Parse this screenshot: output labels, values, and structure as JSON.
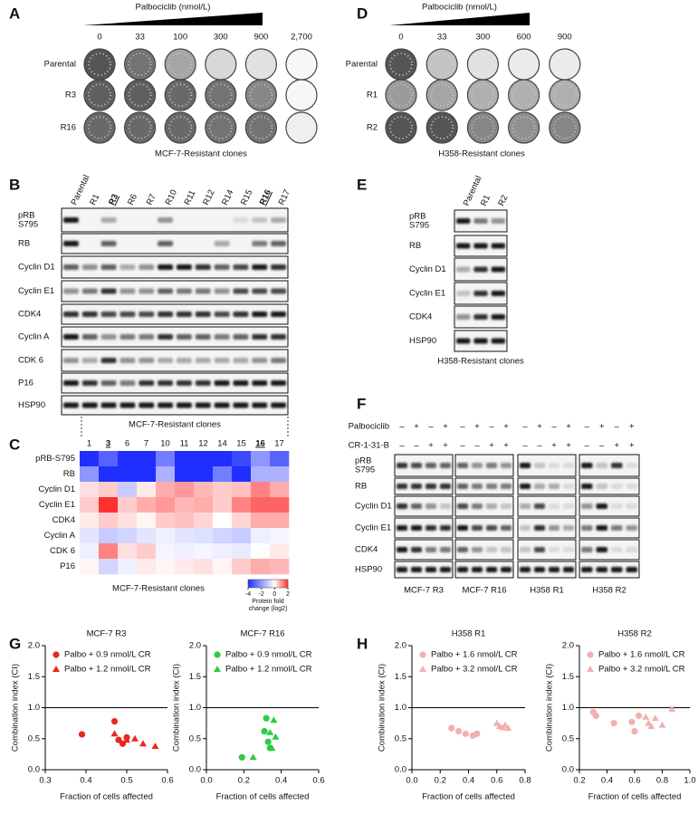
{
  "panel_labels": [
    "A",
    "B",
    "C",
    "D",
    "E",
    "F",
    "G",
    "H"
  ],
  "panel_a": {
    "title": "Palbociclib (nmol/L)",
    "doses": [
      "0",
      "33",
      "100",
      "300",
      "900",
      "2,700"
    ],
    "rows": [
      "Parental",
      "R3",
      "R16"
    ],
    "caption": "MCF-7-Resistant clones"
  },
  "panel_d": {
    "title": "Palbociclib (nmol/L)",
    "doses": [
      "0",
      "33",
      "300",
      "600",
      "900"
    ],
    "rows": [
      "Parental",
      "R1",
      "R2"
    ],
    "caption": "H358-Resistant clones"
  },
  "panel_b": {
    "lanes": [
      "Parental",
      "R1",
      "R3",
      "R6",
      "R7",
      "R10",
      "R11",
      "R12",
      "R14",
      "R15",
      "R16",
      "R17"
    ],
    "proteins": [
      [
        "pRB",
        "S795"
      ],
      [
        "RB"
      ],
      [
        "Cyclin D1"
      ],
      [
        "Cyclin E1"
      ],
      [
        "CDK4"
      ],
      [
        "Cyclin A"
      ],
      [
        "CDK 6"
      ],
      [
        "P16"
      ],
      [
        "HSP90"
      ]
    ],
    "caption": "MCF-7-Resistant clones"
  },
  "panel_e": {
    "lanes": [
      "Parental",
      "R1",
      "R2"
    ],
    "proteins": [
      [
        "pRB",
        "S795"
      ],
      [
        "RB"
      ],
      [
        "Cyclin D1"
      ],
      [
        "Cyclin E1"
      ],
      [
        "CDK4"
      ],
      [
        "HSP90"
      ]
    ],
    "caption": "H358-Resistant clones"
  },
  "panel_f": {
    "treatments": [
      {
        "label": "Palbociclib",
        "signs": [
          [
            "–",
            "+",
            "–",
            "+"
          ],
          [
            "–",
            "+",
            "–",
            "+"
          ],
          [
            "–",
            "+",
            "–",
            "+"
          ],
          [
            "–",
            "+",
            "–",
            "+"
          ]
        ]
      },
      {
        "label": "CR-1-31-B",
        "signs": [
          [
            "–",
            "–",
            "+",
            "+"
          ],
          [
            "–",
            "–",
            "+",
            "+"
          ],
          [
            "–",
            "–",
            "+",
            "+"
          ],
          [
            "–",
            "–",
            "+",
            "+"
          ]
        ]
      }
    ],
    "proteins": [
      [
        "pRB",
        "S795"
      ],
      [
        "RB"
      ],
      [
        "Cyclin D1"
      ],
      [
        "Cyclin E1"
      ],
      [
        "CDK4"
      ],
      [
        "HSP90"
      ]
    ],
    "groups": [
      "MCF-7 R3",
      "MCF-7 R16",
      "H358 R1",
      "H358 R2"
    ]
  },
  "chart_data": [
    {
      "type": "heatmap",
      "columns": [
        "1",
        "3",
        "6",
        "7",
        "10",
        "11",
        "12",
        "14",
        "15",
        "16",
        "17"
      ],
      "rows": [
        "pRB-S795",
        "RB",
        "Cyclin D1",
        "Cyclin E1",
        "CDK4",
        "Cyclin A",
        "CDK 6",
        "P16"
      ],
      "values": [
        [
          -4,
          -3,
          -4,
          -4,
          -2.5,
          -4,
          -4,
          -4,
          -3.5,
          -2,
          -3
        ],
        [
          -2,
          -4,
          -4,
          -4,
          -1.5,
          -4,
          -4,
          -2.5,
          -4,
          -1.5,
          -1.5
        ],
        [
          0.3,
          0.5,
          -1,
          0.2,
          0.8,
          1,
          0.7,
          0.5,
          0.6,
          1.2,
          0.8
        ],
        [
          0.5,
          2,
          0.5,
          0.8,
          1,
          0.7,
          0.8,
          0.5,
          1.2,
          1.5,
          1.5
        ],
        [
          0.2,
          0.5,
          0.3,
          0.1,
          0.5,
          0.6,
          0.4,
          0,
          0.4,
          0.8,
          0.8
        ],
        [
          -0.5,
          -1,
          -0.8,
          -0.5,
          -0.3,
          -0.5,
          -0.6,
          -0.8,
          -1,
          -0.3,
          -0.2
        ],
        [
          -0.3,
          1.2,
          0.3,
          0.5,
          -0.2,
          -0.3,
          -0.2,
          -0.3,
          -0.4,
          0,
          0.2
        ],
        [
          0.1,
          -0.8,
          -0.3,
          0.2,
          0.1,
          0.2,
          0.3,
          0.1,
          0.5,
          0.8,
          0.7
        ]
      ],
      "colorbar": {
        "lim": [
          -4,
          2
        ],
        "ticks": [
          -4,
          -2,
          0,
          2
        ],
        "label": [
          "Protein fold",
          "change (log2)"
        ],
        "low_color": "#1f2fff",
        "high_color": "#ff3030"
      },
      "caption": "MCF-7-Resistant clones"
    },
    {
      "type": "scatter",
      "title": "MCF-7 R3",
      "x_label": "Fraction of cells affected",
      "y_label": "Combination index (CI)",
      "xlim": [
        0.3,
        0.6
      ],
      "xticks": [
        0.3,
        0.4,
        0.5,
        0.6
      ],
      "ylim": [
        0,
        2
      ],
      "yticks": [
        {
          "value": 0,
          "label": "0.0"
        },
        0.5,
        {
          "value": 1,
          "label": "1.0"
        },
        1.5,
        {
          "value": 2,
          "label": "2.0"
        }
      ],
      "reference_line": 1,
      "series": [
        {
          "name": "Palbo + 0.9 nmol/L CR",
          "marker": "circle",
          "color": "#e8281e",
          "x": [
            0.39,
            0.47,
            0.48,
            0.49,
            0.5
          ],
          "values": [
            0.57,
            0.78,
            0.48,
            0.42,
            0.52
          ]
        },
        {
          "name": "Palbo + 1.2 nmol/L CR",
          "marker": "triangle",
          "color": "#e8281e",
          "x": [
            0.47,
            0.5,
            0.52,
            0.54,
            0.57
          ],
          "values": [
            0.58,
            0.48,
            0.5,
            0.42,
            0.38
          ]
        }
      ]
    },
    {
      "type": "scatter",
      "title": "MCF-7 R16",
      "x_label": "Fraction of cells affected",
      "y_label": "Combination index (CI)",
      "xlim": [
        0,
        0.6
      ],
      "xticks": [
        {
          "value": 0,
          "label": "0.0"
        },
        0.2,
        0.4,
        0.6
      ],
      "ylim": [
        0,
        2
      ],
      "yticks": [
        {
          "value": 0,
          "label": "0.0"
        },
        0.5,
        {
          "value": 1,
          "label": "1.0"
        },
        1.5,
        {
          "value": 2,
          "label": "2.0"
        }
      ],
      "reference_line": 1,
      "series": [
        {
          "name": "Palbo + 0.9 nmol/L CR",
          "marker": "circle",
          "color": "#2ecc40",
          "x": [
            0.19,
            0.31,
            0.32,
            0.33,
            0.34
          ],
          "values": [
            0.2,
            0.62,
            0.83,
            0.45,
            0.35
          ]
        },
        {
          "name": "Palbo + 1.2 nmol/L CR",
          "marker": "triangle",
          "color": "#2ecc40",
          "x": [
            0.25,
            0.34,
            0.35,
            0.36,
            0.37
          ],
          "values": [
            0.2,
            0.6,
            0.35,
            0.8,
            0.53
          ]
        }
      ]
    },
    {
      "type": "scatter",
      "title": "H358 R1",
      "x_label": "Fraction of cells affected",
      "y_label": "Combination index (CI)",
      "xlim": [
        0,
        0.8
      ],
      "xticks": [
        {
          "value": 0,
          "label": "0.0"
        },
        0.2,
        0.4,
        0.6,
        0.8
      ],
      "ylim": [
        0,
        2
      ],
      "yticks": [
        {
          "value": 0,
          "label": "0.0"
        },
        0.5,
        {
          "value": 1,
          "label": "1.0"
        },
        1.5,
        {
          "value": 2,
          "label": "2.0"
        }
      ],
      "reference_line": 1,
      "series": [
        {
          "name": "Palbo + 1.6 nmol/L CR",
          "marker": "circle",
          "color": "#f2b0b0",
          "x": [
            0.28,
            0.33,
            0.38,
            0.43,
            0.46
          ],
          "values": [
            0.67,
            0.62,
            0.58,
            0.55,
            0.58
          ]
        },
        {
          "name": "Palbo + 3.2 nmol/L CR",
          "marker": "triangle",
          "color": "#f2b0b0",
          "x": [
            0.6,
            0.62,
            0.64,
            0.66,
            0.68
          ],
          "values": [
            0.75,
            0.7,
            0.68,
            0.72,
            0.67
          ]
        }
      ]
    },
    {
      "type": "scatter",
      "title": "H358 R2",
      "x_label": "Fraction of cells affected",
      "y_label": "Combination index (CI)",
      "xlim": [
        0.2,
        1
      ],
      "xticks": [
        0.2,
        0.4,
        0.6,
        0.8,
        {
          "value": 1,
          "label": "1.0"
        }
      ],
      "ylim": [
        0,
        2
      ],
      "yticks": [
        {
          "value": 0,
          "label": "0.0"
        },
        0.5,
        {
          "value": 1,
          "label": "1.0"
        },
        1.5,
        {
          "value": 2,
          "label": "2.0"
        }
      ],
      "reference_line": 1,
      "series": [
        {
          "name": "Palbo + 1.6 nmol/L CR",
          "marker": "circle",
          "color": "#f2b0b0",
          "x": [
            0.3,
            0.32,
            0.45,
            0.58,
            0.6,
            0.63
          ],
          "values": [
            0.93,
            0.87,
            0.75,
            0.77,
            0.62,
            0.87
          ]
        },
        {
          "name": "Palbo + 3.2 nmol/L CR",
          "marker": "triangle",
          "color": "#f2b0b0",
          "x": [
            0.68,
            0.7,
            0.72,
            0.75,
            0.8,
            0.87
          ],
          "values": [
            0.85,
            0.75,
            0.7,
            0.83,
            0.72,
            0.98
          ]
        }
      ]
    }
  ]
}
